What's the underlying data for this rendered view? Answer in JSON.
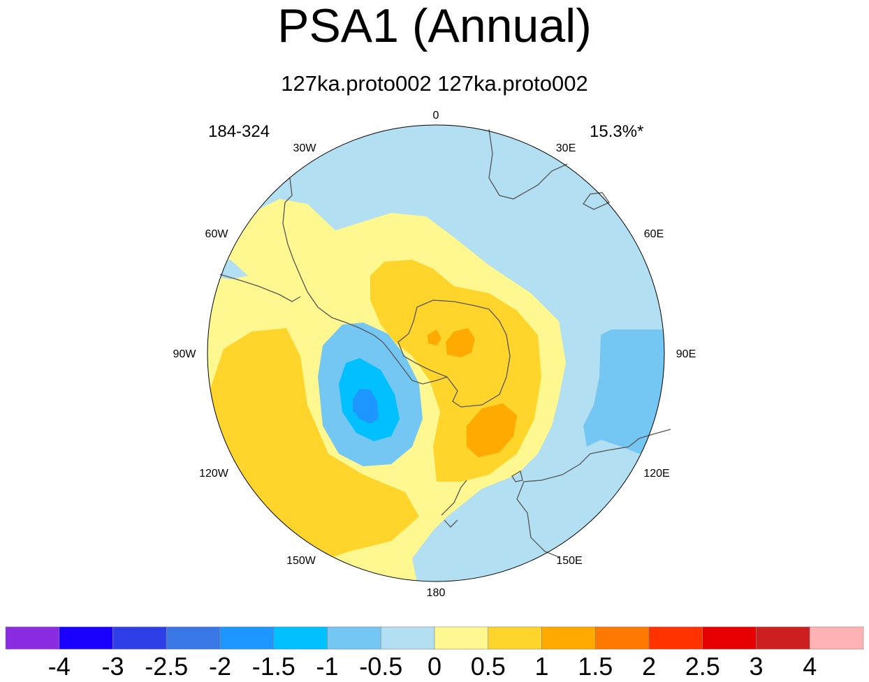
{
  "title": "PSA1 (Annual)",
  "subtitle": "127ka.proto002  127ka.proto002",
  "left_label": "184-324",
  "right_label": "15.3%*",
  "longitude_labels": {
    "lon_0": "0",
    "lon_30e": "30E",
    "lon_60e": "60E",
    "lon_90e": "90E",
    "lon_120e": "120E",
    "lon_150e": "150E",
    "lon_180": "180",
    "lon_150w": "150W",
    "lon_120w": "120W",
    "lon_90w": "90W",
    "lon_60w": "60W",
    "lon_30w": "30W"
  },
  "colorbar": {
    "colors": [
      "#8a2be2",
      "#1a00ff",
      "#2e3fe8",
      "#3a78e8",
      "#1e96ff",
      "#00c0ff",
      "#74c6f3",
      "#b3dff3",
      "#fff78f",
      "#ffd52b",
      "#ffaa00",
      "#ff7800",
      "#ff3200",
      "#e60000",
      "#cd1f1f",
      "#ffb3b3"
    ],
    "ticks": [
      "-4",
      "-3",
      "-2.5",
      "-2",
      "-1.5",
      "-1",
      "-0.5",
      "0",
      "0.5",
      "1",
      "1.5",
      "2",
      "2.5",
      "3",
      "4"
    ]
  },
  "fill_colors": {
    "ocean_base": "#b3dff3",
    "lev_0": "#fff78f",
    "lev_05": "#ffd52b",
    "lev_1": "#ffaa00",
    "neg_05": "#74c6f3",
    "neg_1": "#00c0ff",
    "neg_15": "#1e96ff",
    "coast": "#555555"
  }
}
